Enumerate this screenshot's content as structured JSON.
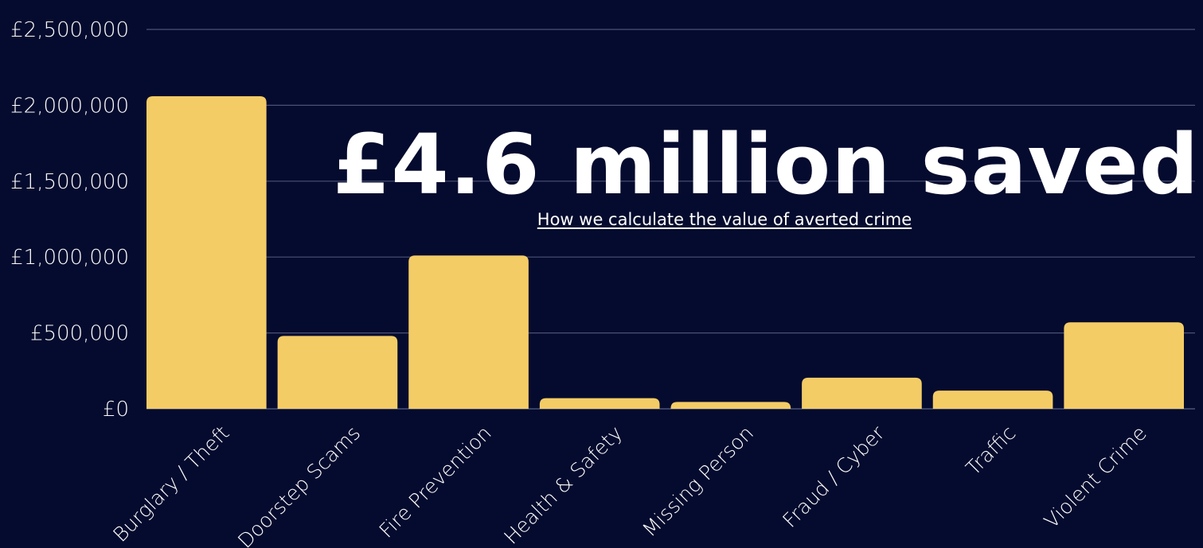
{
  "headline": "£4.6 million saved",
  "link_text": "How we calculate the value of averted crime",
  "colors": {
    "background": "#050b2e",
    "bar": "#f4cc66",
    "grid": "#4a5275",
    "text": "#ffffff"
  },
  "chart_data": {
    "type": "bar",
    "categories": [
      "Burglary / Theft",
      "Doorstep Scams",
      "Fire Prevention",
      "Health & Safety",
      "Missing Person",
      "Fraud / Cyber",
      "Traffic",
      "Violent Crime"
    ],
    "values": [
      2060000,
      480000,
      1010000,
      70000,
      45000,
      205000,
      120000,
      570000
    ],
    "ylim": [
      0,
      2500000
    ],
    "yticks": [
      0,
      500000,
      1000000,
      1500000,
      2000000,
      2500000
    ],
    "ytick_labels": [
      "£0",
      "£500,000",
      "£1,000,000",
      "£1,500,000",
      "£2,000,000",
      "£2,500,000"
    ],
    "grid": true,
    "title": "",
    "xlabel": "",
    "ylabel": ""
  }
}
